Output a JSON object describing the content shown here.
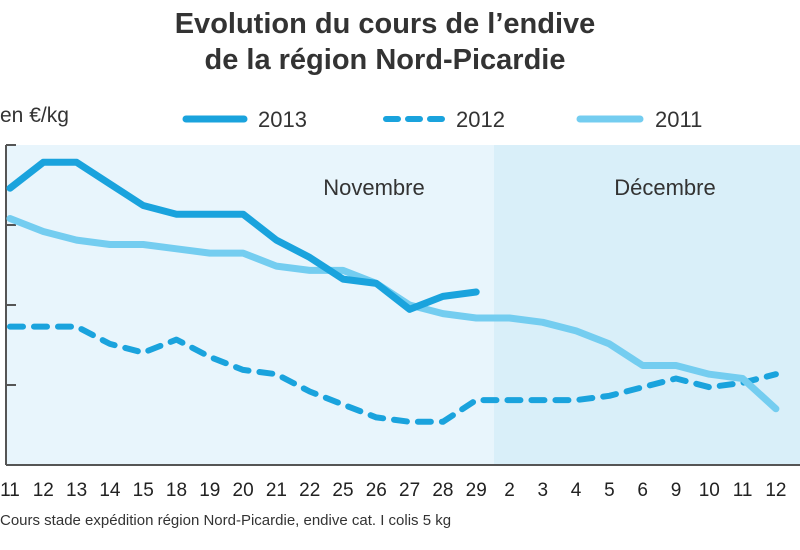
{
  "title_line1": "Evolution du cours de l’endive",
  "title_line2": "de la région Nord-Picardie",
  "unit_label": "en €/kg",
  "source_note": "Cours stade expédition région Nord-Picardie, endive cat. I colis 5 kg",
  "colors": {
    "s2013": "#1aa3dd",
    "s2012": "#1aa3dd",
    "s2011": "#74cdf0",
    "band_nov": "#e8f5fc",
    "band_dec": "#d9eff9",
    "axis": "#555555"
  },
  "chart_data": {
    "type": "line",
    "title": "Evolution du cours de l’endive de la région Nord-Picardie",
    "ylabel": "en €/kg",
    "xlabel": "",
    "x_tick_labels": [
      "11",
      "12",
      "13",
      "14",
      "15",
      "18",
      "19",
      "20",
      "21",
      "22",
      "25",
      "26",
      "27",
      "28",
      "29",
      "2",
      "3",
      "4",
      "5",
      "6",
      "9",
      "10",
      "11",
      "12"
    ],
    "period_labels": [
      "Novembre",
      "Décembre"
    ],
    "y_gridlines": 4,
    "grid": false,
    "legend_placement": "top",
    "series": [
      {
        "name": "2013",
        "style": "solid",
        "values": [
          3.5,
          3.8,
          3.8,
          3.55,
          3.3,
          3.2,
          3.2,
          3.2,
          2.9,
          2.7,
          2.45,
          2.4,
          2.1,
          2.25,
          2.3
        ]
      },
      {
        "name": "2012",
        "style": "dashed",
        "values": [
          1.9,
          1.9,
          1.9,
          1.7,
          1.6,
          1.75,
          1.55,
          1.4,
          1.35,
          1.15,
          1.0,
          0.85,
          0.8,
          0.8,
          1.05,
          1.05,
          1.05,
          1.05,
          1.1,
          1.2,
          1.3,
          1.2,
          1.25,
          1.35
        ]
      },
      {
        "name": "2011",
        "style": "solid",
        "values": [
          3.15,
          3.0,
          2.9,
          2.85,
          2.85,
          2.8,
          2.75,
          2.75,
          2.6,
          2.55,
          2.55,
          2.4,
          2.15,
          2.05,
          2.0,
          2.0,
          1.95,
          1.85,
          1.7,
          1.45,
          1.45,
          1.35,
          1.3,
          0.95
        ]
      }
    ]
  }
}
